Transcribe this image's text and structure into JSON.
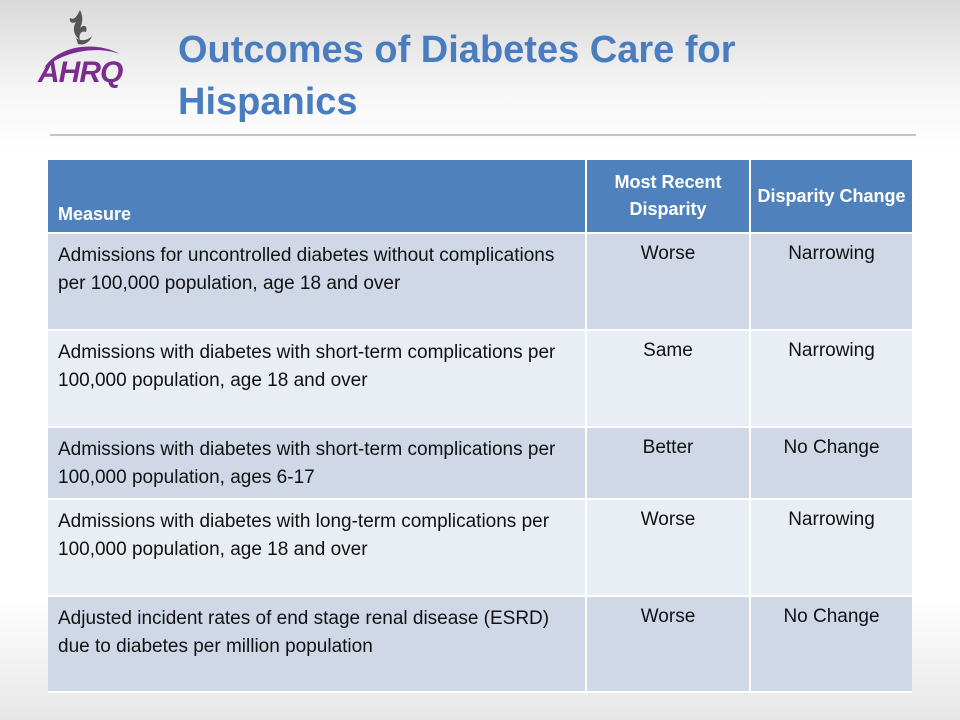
{
  "logo": {
    "text": "AHRQ"
  },
  "title": "Outcomes of Diabetes Care for Hispanics",
  "table": {
    "headers": [
      "Measure",
      "Most Recent Disparity",
      "Disparity Change"
    ],
    "rows": [
      [
        "Admissions for uncontrolled diabetes without complications per 100,000 population, age 18 and over",
        "Worse",
        "Narrowing"
      ],
      [
        "Admissions with diabetes with short-term complications per 100,000 population, age 18 and over",
        "Same",
        "Narrowing"
      ],
      [
        "Admissions with diabetes with short-term complications per 100,000 population, ages 6-17",
        "Better",
        "No Change"
      ],
      [
        "Admissions with diabetes with long-term complications per 100,000 population, age 18 and over",
        "Worse",
        "Narrowing"
      ],
      [
        "Adjusted incident rates of end stage renal disease (ESRD) due to diabetes per million population",
        "Worse",
        "No Change"
      ]
    ]
  },
  "colors": {
    "title": "#4a7dbf",
    "header_bg": "#4f81bd",
    "row_odd": "#d0d8e8",
    "row_even": "#e9edf4",
    "logo_purple": "#7b2d8e"
  }
}
